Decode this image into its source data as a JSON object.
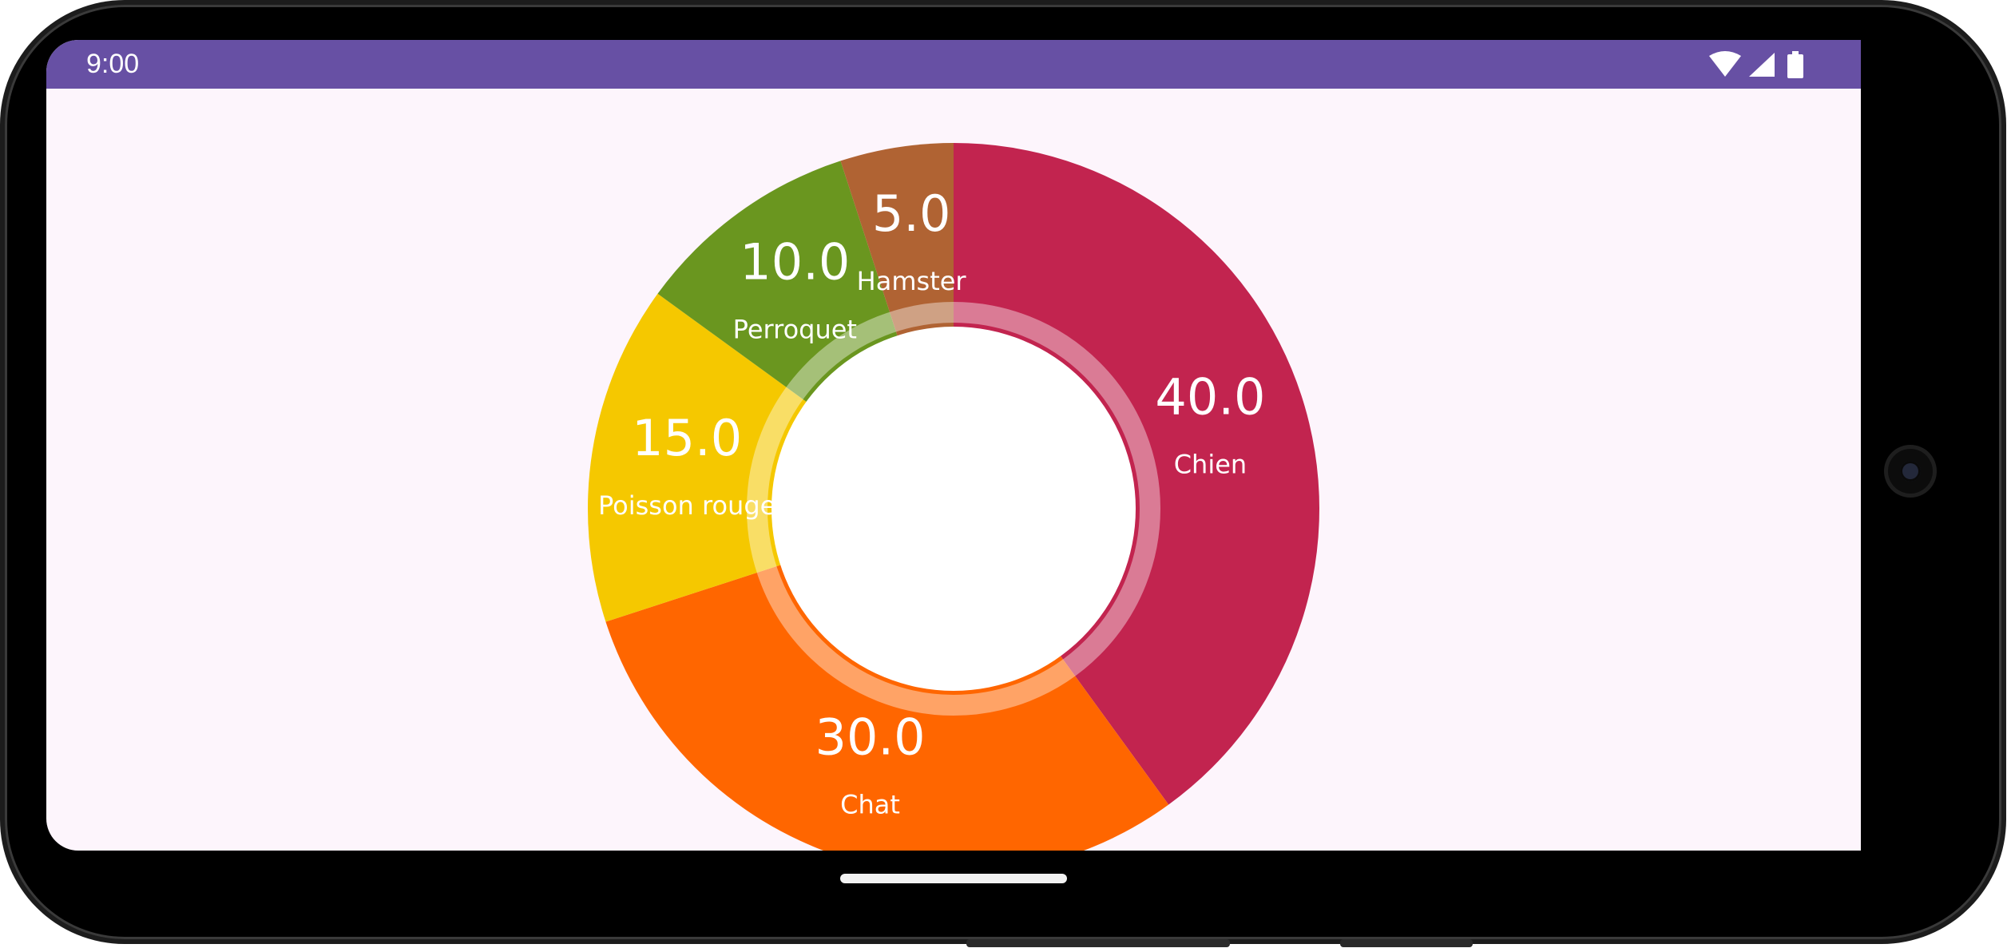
{
  "status_bar": {
    "time": "9:00",
    "background_color": "#6750a4",
    "icons": [
      "wifi-icon",
      "cellular-signal-icon",
      "battery-icon"
    ]
  },
  "chart_data": {
    "type": "pie",
    "donut": true,
    "start_angle_deg": -90,
    "direction": "clockwise",
    "value_format": "0.0",
    "slices": [
      {
        "label": "Chien",
        "value": 40.0,
        "color": "#c2244f"
      },
      {
        "label": "Chat",
        "value": 30.0,
        "color": "#ff6600"
      },
      {
        "label": "Poisson rouge",
        "value": 15.0,
        "color": "#f5c800"
      },
      {
        "label": "Perroquet",
        "value": 10.0,
        "color": "#6a961f"
      },
      {
        "label": "Hamster",
        "value": 5.0,
        "color": "#b06333"
      }
    ],
    "hole_color": "#ffffff",
    "ring_overlay": "translucent white ring inside the slices"
  },
  "background_color": "#fdf5fc"
}
